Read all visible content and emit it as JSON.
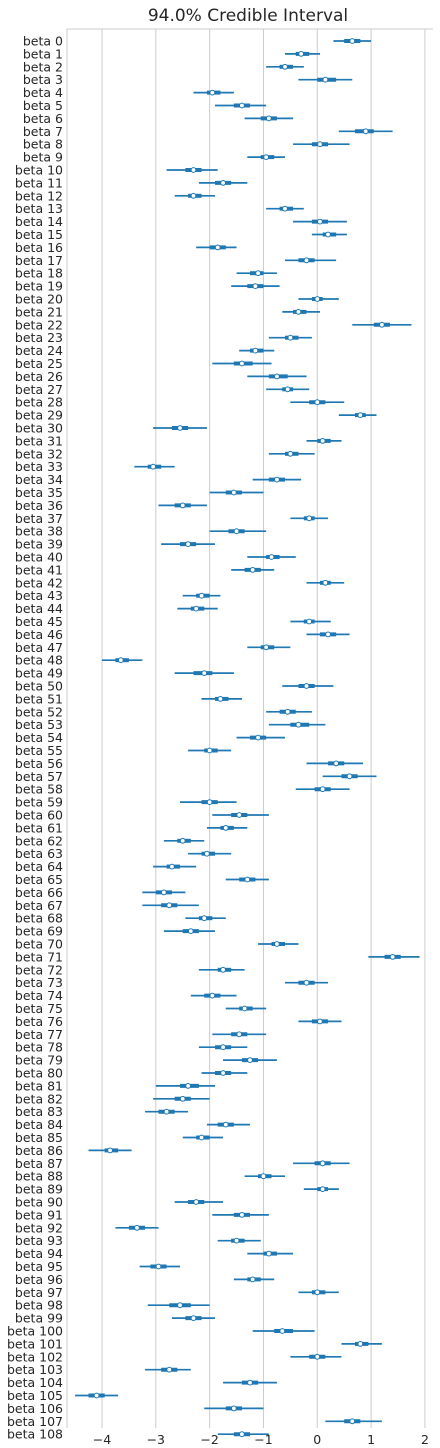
{
  "chart_data": {
    "type": "forest",
    "title": "94.0% Credible Interval",
    "xlim": [
      -4.65,
      2.15
    ],
    "xticks": [
      -4,
      -3,
      -2,
      -1,
      0,
      1,
      2
    ],
    "xtick_labels": [
      "−4",
      "−3",
      "−2",
      "−1",
      "0",
      "1",
      "2"
    ],
    "grid": "vertical",
    "colors": {
      "interval": "#1f77b4",
      "grid": "#cccccc",
      "median_fill": "#ffffff"
    },
    "labels": [
      "beta 0",
      "beta 1",
      "beta 2",
      "beta 3",
      "beta 4",
      "beta 5",
      "beta 6",
      "beta 7",
      "beta 8",
      "beta 9",
      "beta 10",
      "beta 11",
      "beta 12",
      "beta 13",
      "beta 14",
      "beta 15",
      "beta 16",
      "beta 17",
      "beta 18",
      "beta 19",
      "beta 20",
      "beta 21",
      "beta 22",
      "beta 23",
      "beta 24",
      "beta 25",
      "beta 26",
      "beta 27",
      "beta 28",
      "beta 29",
      "beta 30",
      "beta 31",
      "beta 32",
      "beta 33",
      "beta 34",
      "beta 35",
      "beta 36",
      "beta 37",
      "beta 38",
      "beta 39",
      "beta 40",
      "beta 41",
      "beta 42",
      "beta 43",
      "beta 44",
      "beta 45",
      "beta 46",
      "beta 47",
      "beta 48",
      "beta 49",
      "beta 50",
      "beta 51",
      "beta 52",
      "beta 53",
      "beta 54",
      "beta 55",
      "beta 56",
      "beta 57",
      "beta 58",
      "beta 59",
      "beta 60",
      "beta 61",
      "beta 62",
      "beta 63",
      "beta 64",
      "beta 65",
      "beta 66",
      "beta 67",
      "beta 68",
      "beta 69",
      "beta 70",
      "beta 71",
      "beta 72",
      "beta 73",
      "beta 74",
      "beta 75",
      "beta 76",
      "beta 77",
      "beta 78",
      "beta 79",
      "beta 80",
      "beta 81",
      "beta 82",
      "beta 83",
      "beta 84",
      "beta 85",
      "beta 86",
      "beta 87",
      "beta 88",
      "beta 89",
      "beta 90",
      "beta 91",
      "beta 92",
      "beta 93",
      "beta 94",
      "beta 95",
      "beta 96",
      "beta 97",
      "beta 98",
      "beta 99",
      "beta 100",
      "beta 101",
      "beta 102",
      "beta 103",
      "beta 104",
      "beta 105",
      "beta 106",
      "beta 107",
      "beta 108"
    ],
    "medians": [
      0.65,
      -0.3,
      -0.6,
      0.15,
      -1.95,
      -1.4,
      -0.9,
      0.9,
      0.05,
      -0.95,
      -2.3,
      -1.75,
      -2.3,
      -0.6,
      0.05,
      0.2,
      -1.85,
      -0.2,
      -1.1,
      -1.15,
      0.0,
      -0.35,
      1.2,
      -0.5,
      -1.15,
      -1.4,
      -0.75,
      -0.55,
      0.0,
      0.8,
      -2.55,
      0.1,
      -0.5,
      -3.05,
      -0.75,
      -1.55,
      -2.5,
      -0.15,
      -1.5,
      -2.4,
      -0.85,
      -1.2,
      0.15,
      -2.15,
      -2.25,
      -0.15,
      0.2,
      -0.95,
      -3.65,
      -2.1,
      -0.2,
      -1.8,
      -0.55,
      -0.35,
      -1.1,
      -2.0,
      0.35,
      0.6,
      0.1,
      -2.0,
      -1.45,
      -1.7,
      -2.5,
      -2.05,
      -2.7,
      -1.3,
      -2.85,
      -2.75,
      -2.1,
      -2.35,
      -0.75,
      1.4,
      -1.75,
      -0.2,
      -1.95,
      -1.35,
      0.05,
      -1.45,
      -1.75,
      -1.25,
      -1.75,
      -2.4,
      -2.5,
      -2.8,
      -1.7,
      -2.15,
      -3.85,
      0.1,
      -1.0,
      0.1,
      -2.25,
      -1.4,
      -3.35,
      -1.5,
      -0.9,
      -2.95,
      -1.2,
      0.0,
      -2.55,
      -2.3,
      -0.65,
      0.8,
      0.0,
      -2.75,
      -1.25,
      -4.1,
      -1.55,
      0.65,
      -1.4
    ],
    "hdi_94": [
      [
        0.3,
        1.0
      ],
      [
        -0.6,
        0.05
      ],
      [
        -0.95,
        -0.25
      ],
      [
        -0.35,
        0.65
      ],
      [
        -2.3,
        -1.55
      ],
      [
        -1.9,
        -0.95
      ],
      [
        -1.35,
        -0.45
      ],
      [
        0.4,
        1.4
      ],
      [
        -0.45,
        0.6
      ],
      [
        -1.3,
        -0.6
      ],
      [
        -2.8,
        -1.85
      ],
      [
        -2.2,
        -1.3
      ],
      [
        -2.65,
        -1.9
      ],
      [
        -0.95,
        -0.25
      ],
      [
        -0.45,
        0.55
      ],
      [
        -0.1,
        0.55
      ],
      [
        -2.25,
        -1.5
      ],
      [
        -0.6,
        0.35
      ],
      [
        -1.5,
        -0.75
      ],
      [
        -1.6,
        -0.7
      ],
      [
        -0.35,
        0.4
      ],
      [
        -0.65,
        0.05
      ],
      [
        0.65,
        1.75
      ],
      [
        -0.9,
        -0.1
      ],
      [
        -1.45,
        -0.8
      ],
      [
        -1.95,
        -0.85
      ],
      [
        -1.3,
        -0.2
      ],
      [
        -0.95,
        -0.15
      ],
      [
        -0.5,
        0.5
      ],
      [
        0.4,
        1.1
      ],
      [
        -3.05,
        -2.05
      ],
      [
        -0.2,
        0.45
      ],
      [
        -0.9,
        -0.05
      ],
      [
        -3.4,
        -2.65
      ],
      [
        -1.2,
        -0.3
      ],
      [
        -2.0,
        -1.0
      ],
      [
        -2.95,
        -2.05
      ],
      [
        -0.5,
        0.2
      ],
      [
        -2.0,
        -0.95
      ],
      [
        -2.9,
        -1.9
      ],
      [
        -1.3,
        -0.4
      ],
      [
        -1.6,
        -0.8
      ],
      [
        -0.2,
        0.5
      ],
      [
        -2.5,
        -1.8
      ],
      [
        -2.6,
        -1.85
      ],
      [
        -0.5,
        0.25
      ],
      [
        -0.2,
        0.6
      ],
      [
        -1.3,
        -0.5
      ],
      [
        -4.0,
        -3.25
      ],
      [
        -2.65,
        -1.55
      ],
      [
        -0.65,
        0.3
      ],
      [
        -2.15,
        -1.4
      ],
      [
        -0.95,
        -0.1
      ],
      [
        -0.9,
        0.15
      ],
      [
        -1.5,
        -0.6
      ],
      [
        -2.4,
        -1.6
      ],
      [
        -0.2,
        0.85
      ],
      [
        0.1,
        1.1
      ],
      [
        -0.4,
        0.6
      ],
      [
        -2.55,
        -1.5
      ],
      [
        -1.95,
        -0.9
      ],
      [
        -2.05,
        -1.3
      ],
      [
        -2.85,
        -2.1
      ],
      [
        -2.4,
        -1.6
      ],
      [
        -3.05,
        -2.25
      ],
      [
        -1.7,
        -0.9
      ],
      [
        -3.25,
        -2.45
      ],
      [
        -3.25,
        -2.2
      ],
      [
        -2.45,
        -1.7
      ],
      [
        -2.85,
        -1.9
      ],
      [
        -1.1,
        -0.35
      ],
      [
        0.95,
        1.9
      ],
      [
        -2.2,
        -1.35
      ],
      [
        -0.6,
        0.2
      ],
      [
        -2.35,
        -1.5
      ],
      [
        -1.7,
        -0.95
      ],
      [
        -0.35,
        0.45
      ],
      [
        -1.95,
        -0.95
      ],
      [
        -2.2,
        -1.3
      ],
      [
        -1.75,
        -0.75
      ],
      [
        -2.15,
        -1.3
      ],
      [
        -3.0,
        -1.9
      ],
      [
        -3.05,
        -2.0
      ],
      [
        -3.2,
        -2.4
      ],
      [
        -2.05,
        -1.25
      ],
      [
        -2.5,
        -1.75
      ],
      [
        -4.25,
        -3.45
      ],
      [
        -0.45,
        0.6
      ],
      [
        -1.35,
        -0.6
      ],
      [
        -0.25,
        0.4
      ],
      [
        -2.65,
        -1.75
      ],
      [
        -1.95,
        -0.9
      ],
      [
        -3.75,
        -2.95
      ],
      [
        -1.85,
        -1.05
      ],
      [
        -1.3,
        -0.45
      ],
      [
        -3.3,
        -2.55
      ],
      [
        -1.55,
        -0.8
      ],
      [
        -0.35,
        0.4
      ],
      [
        -3.15,
        -2.0
      ],
      [
        -2.7,
        -1.9
      ],
      [
        -1.2,
        -0.05
      ],
      [
        0.45,
        1.2
      ],
      [
        -0.5,
        0.45
      ],
      [
        -3.2,
        -2.35
      ],
      [
        -1.75,
        -0.75
      ],
      [
        -4.5,
        -3.7
      ],
      [
        -2.1,
        -1.0
      ],
      [
        0.15,
        1.2
      ],
      [
        -1.85,
        -0.9
      ]
    ],
    "iqr": [
      [
        0.5,
        0.8
      ],
      [
        -0.4,
        -0.15
      ],
      [
        -0.7,
        -0.45
      ],
      [
        0.0,
        0.35
      ],
      [
        -2.05,
        -1.8
      ],
      [
        -1.55,
        -1.25
      ],
      [
        -1.05,
        -0.75
      ],
      [
        0.7,
        1.05
      ],
      [
        -0.1,
        0.2
      ],
      [
        -1.05,
        -0.8
      ],
      [
        -2.45,
        -2.15
      ],
      [
        -1.9,
        -1.6
      ],
      [
        -2.4,
        -2.15
      ],
      [
        -0.7,
        -0.45
      ],
      [
        -0.1,
        0.2
      ],
      [
        0.1,
        0.35
      ],
      [
        -2.0,
        -1.7
      ],
      [
        -0.35,
        -0.05
      ],
      [
        -1.25,
        -1.0
      ],
      [
        -1.3,
        -1.0
      ],
      [
        -0.1,
        0.1
      ],
      [
        -0.45,
        -0.2
      ],
      [
        1.05,
        1.35
      ],
      [
        -0.6,
        -0.35
      ],
      [
        -1.25,
        -1.0
      ],
      [
        -1.55,
        -1.2
      ],
      [
        -0.9,
        -0.55
      ],
      [
        -0.65,
        -0.45
      ],
      [
        -0.15,
        0.15
      ],
      [
        0.7,
        0.9
      ],
      [
        -2.7,
        -2.4
      ],
      [
        0.0,
        0.25
      ],
      [
        -0.6,
        -0.35
      ],
      [
        -3.15,
        -2.9
      ],
      [
        -0.9,
        -0.6
      ],
      [
        -1.7,
        -1.4
      ],
      [
        -2.65,
        -2.35
      ],
      [
        -0.25,
        -0.05
      ],
      [
        -1.65,
        -1.35
      ],
      [
        -2.55,
        -2.25
      ],
      [
        -0.95,
        -0.7
      ],
      [
        -1.35,
        -1.05
      ],
      [
        0.05,
        0.25
      ],
      [
        -2.25,
        -2.0
      ],
      [
        -2.35,
        -2.1
      ],
      [
        -0.25,
        -0.05
      ],
      [
        0.05,
        0.35
      ],
      [
        -1.05,
        -0.8
      ],
      [
        -3.75,
        -3.5
      ],
      [
        -2.3,
        -1.95
      ],
      [
        -0.35,
        -0.05
      ],
      [
        -1.9,
        -1.65
      ],
      [
        -0.7,
        -0.4
      ],
      [
        -0.5,
        -0.15
      ],
      [
        -1.25,
        -0.95
      ],
      [
        -2.1,
        -1.85
      ],
      [
        0.2,
        0.5
      ],
      [
        0.45,
        0.75
      ],
      [
        -0.05,
        0.25
      ],
      [
        -2.15,
        -1.85
      ],
      [
        -1.6,
        -1.3
      ],
      [
        -1.8,
        -1.55
      ],
      [
        -2.6,
        -2.35
      ],
      [
        -2.15,
        -1.9
      ],
      [
        -2.8,
        -2.55
      ],
      [
        -1.45,
        -1.15
      ],
      [
        -3.0,
        -2.7
      ],
      [
        -2.9,
        -2.6
      ],
      [
        -2.2,
        -1.95
      ],
      [
        -2.5,
        -2.2
      ],
      [
        -0.85,
        -0.6
      ],
      [
        1.25,
        1.55
      ],
      [
        -1.85,
        -1.6
      ],
      [
        -0.35,
        -0.05
      ],
      [
        -2.1,
        -1.8
      ],
      [
        -1.45,
        -1.2
      ],
      [
        -0.1,
        0.2
      ],
      [
        -1.6,
        -1.3
      ],
      [
        -1.9,
        -1.6
      ],
      [
        -1.4,
        -1.1
      ],
      [
        -1.9,
        -1.6
      ],
      [
        -2.55,
        -2.2
      ],
      [
        -2.65,
        -2.35
      ],
      [
        -2.95,
        -2.65
      ],
      [
        -1.85,
        -1.55
      ],
      [
        -2.25,
        -2.0
      ],
      [
        -3.95,
        -3.7
      ],
      [
        -0.05,
        0.25
      ],
      [
        -1.1,
        -0.85
      ],
      [
        0.0,
        0.2
      ],
      [
        -2.4,
        -2.1
      ],
      [
        -1.55,
        -1.25
      ],
      [
        -3.5,
        -3.2
      ],
      [
        -1.6,
        -1.35
      ],
      [
        -1.0,
        -0.75
      ],
      [
        -3.1,
        -2.8
      ],
      [
        -1.3,
        -1.05
      ],
      [
        -0.1,
        0.15
      ],
      [
        -2.75,
        -2.35
      ],
      [
        -2.45,
        -2.15
      ],
      [
        -0.8,
        -0.45
      ],
      [
        0.7,
        0.95
      ],
      [
        -0.15,
        0.15
      ],
      [
        -2.9,
        -2.6
      ],
      [
        -1.4,
        -1.1
      ],
      [
        -4.25,
        -3.95
      ],
      [
        -1.7,
        -1.4
      ],
      [
        0.5,
        0.8
      ],
      [
        -1.55,
        -1.25
      ]
    ]
  }
}
